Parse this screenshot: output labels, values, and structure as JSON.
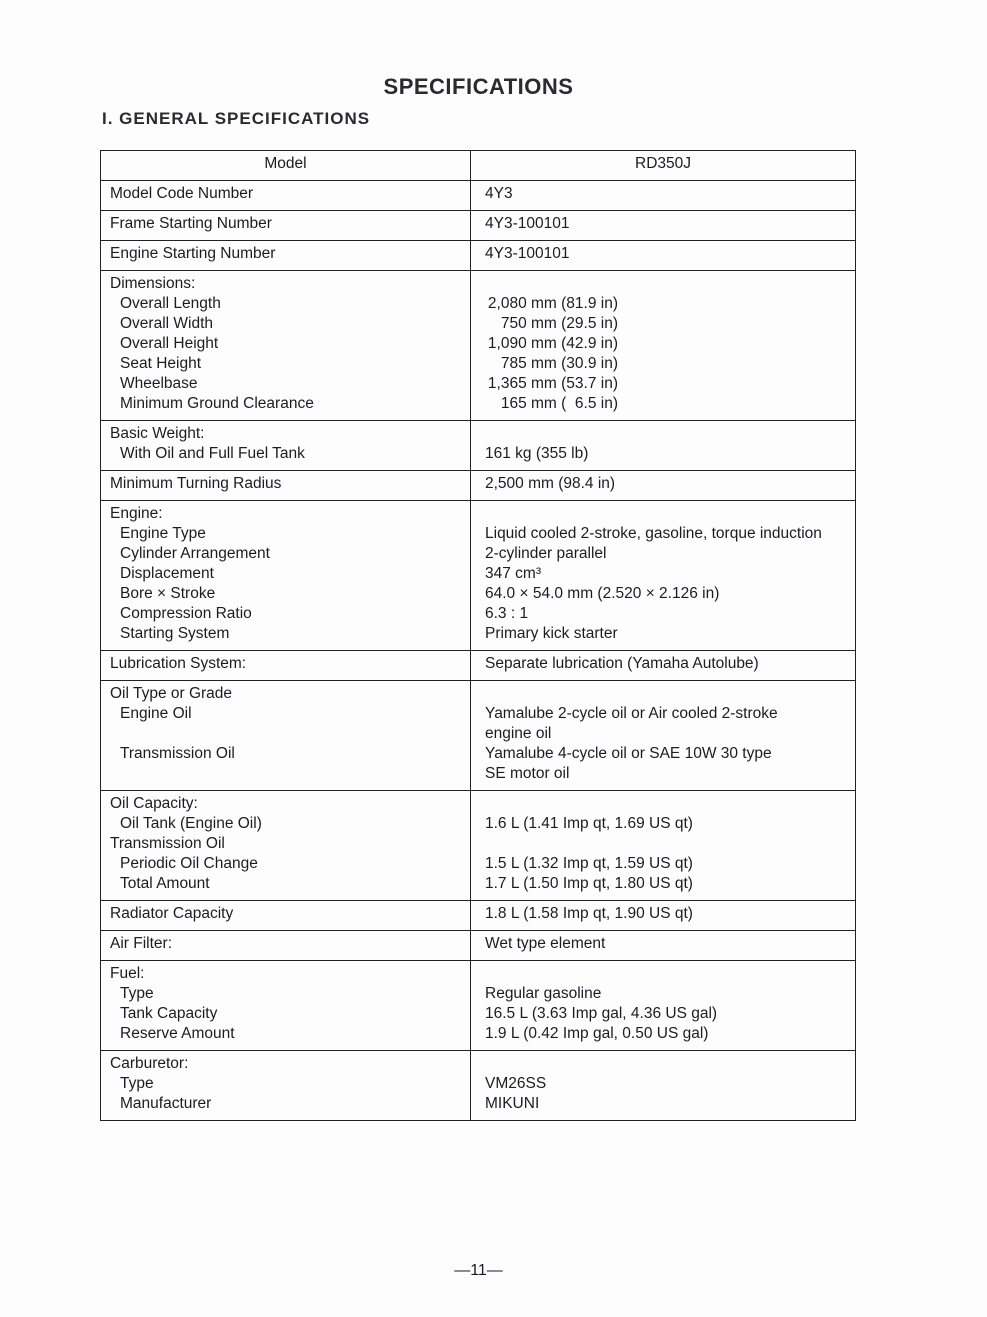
{
  "title": "SPECIFICATIONS",
  "section": "I. GENERAL SPECIFICATIONS",
  "table": {
    "header": {
      "left": "Model",
      "right": "RD350J"
    },
    "rows": [
      {
        "left": [
          {
            "text": "Model Code Number",
            "level": 0
          }
        ],
        "right": [
          "4Y3"
        ]
      },
      {
        "left": [
          {
            "text": "Frame Starting Number",
            "level": 0
          }
        ],
        "right": [
          "4Y3-100101"
        ]
      },
      {
        "left": [
          {
            "text": "Engine Starting Number",
            "level": 0
          }
        ],
        "right": [
          "4Y3-100101"
        ]
      },
      {
        "left": [
          {
            "text": "Dimensions:",
            "level": 0
          },
          {
            "text": "Overall Length",
            "level": 1
          },
          {
            "text": "Overall Width",
            "level": 1
          },
          {
            "text": "Overall Height",
            "level": 1
          },
          {
            "text": "Seat Height",
            "level": 1
          },
          {
            "text": "Wheelbase",
            "level": 1
          },
          {
            "text": "Minimum Ground Clearance",
            "level": 1
          }
        ],
        "right": [
          "",
          "2,080 mm (81.9 in)",
          "750 mm (29.5 in)",
          "1,090 mm (42.9 in)",
          "785 mm (30.9 in)",
          "1,365 mm (53.7 in)",
          "165 mm (  6.5 in)"
        ],
        "right_aligned": true
      },
      {
        "left": [
          {
            "text": "Basic Weight:",
            "level": 0
          },
          {
            "text": "With Oil and Full Fuel Tank",
            "level": 1
          }
        ],
        "right": [
          "",
          "161 kg (355 lb)"
        ]
      },
      {
        "left": [
          {
            "text": "Minimum Turning Radius",
            "level": 0
          }
        ],
        "right": [
          "2,500 mm (98.4 in)"
        ]
      },
      {
        "left": [
          {
            "text": "Engine:",
            "level": 0
          },
          {
            "text": "Engine Type",
            "level": 1
          },
          {
            "text": "Cylinder Arrangement",
            "level": 1
          },
          {
            "text": "Displacement",
            "level": 1
          },
          {
            "text": "Bore × Stroke",
            "level": 1
          },
          {
            "text": "Compression Ratio",
            "level": 1
          },
          {
            "text": "Starting System",
            "level": 1
          }
        ],
        "right": [
          "",
          "Liquid cooled 2-stroke, gasoline, torque induction",
          "2-cylinder parallel",
          "347 cm³",
          "64.0 × 54.0 mm (2.520 × 2.126 in)",
          "6.3 : 1",
          "Primary kick starter"
        ]
      },
      {
        "left": [
          {
            "text": "Lubrication System:",
            "level": 0
          }
        ],
        "right": [
          "Separate lubrication (Yamaha Autolube)"
        ]
      },
      {
        "left": [
          {
            "text": "Oil Type or Grade",
            "level": 0
          },
          {
            "text": "Engine Oil",
            "level": 1
          },
          {
            "text": "",
            "level": 1
          },
          {
            "text": "Transmission Oil",
            "level": 1
          },
          {
            "text": "",
            "level": 1
          }
        ],
        "right": [
          "",
          "Yamalube 2-cycle oil or Air cooled 2-stroke",
          "engine oil",
          "Yamalube 4-cycle oil or SAE 10W 30 type",
          "SE motor oil"
        ]
      },
      {
        "left": [
          {
            "text": "Oil Capacity:",
            "level": 0
          },
          {
            "text": "Oil Tank (Engine Oil)",
            "level": 1
          },
          {
            "text": "Transmission Oil",
            "level": 0
          },
          {
            "text": "Periodic Oil Change",
            "level": 1
          },
          {
            "text": "Total Amount",
            "level": 1
          }
        ],
        "right": [
          "",
          "1.6 L (1.41 Imp qt, 1.69 US qt)",
          "",
          "1.5 L (1.32 Imp qt, 1.59 US qt)",
          "1.7 L (1.50 Imp qt, 1.80 US qt)"
        ]
      },
      {
        "left": [
          {
            "text": "Radiator Capacity",
            "level": 0
          }
        ],
        "right": [
          "1.8 L (1.58 Imp qt, 1.90 US qt)"
        ]
      },
      {
        "left": [
          {
            "text": "Air Filter:",
            "level": 0
          }
        ],
        "right": [
          "Wet type element"
        ]
      },
      {
        "left": [
          {
            "text": "Fuel:",
            "level": 0
          },
          {
            "text": "Type",
            "level": 1
          },
          {
            "text": "Tank Capacity",
            "level": 1
          },
          {
            "text": "Reserve Amount",
            "level": 1
          }
        ],
        "right": [
          "",
          "Regular gasoline",
          "16.5 L (3.63 Imp gal, 4.36 US gal)",
          "1.9 L (0.42 Imp gal, 0.50 US gal)"
        ]
      },
      {
        "left": [
          {
            "text": "Carburetor:",
            "level": 0
          },
          {
            "text": "Type",
            "level": 1
          },
          {
            "text": "Manufacturer",
            "level": 1
          }
        ],
        "right": [
          "",
          "VM26SS",
          "MIKUNI"
        ]
      }
    ]
  },
  "page_number": "—11—"
}
